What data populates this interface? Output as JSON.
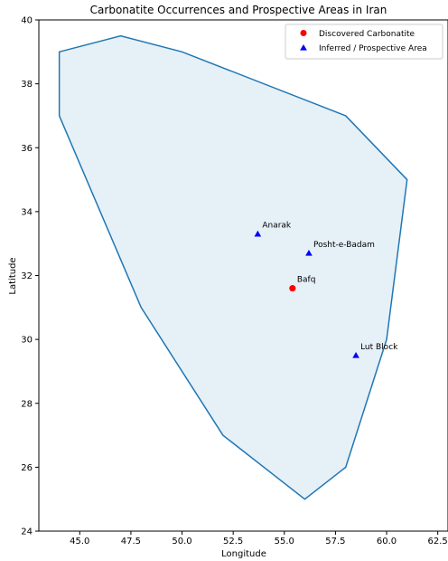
{
  "chart_data": {
    "type": "scatter",
    "title": "Carbonatite Occurrences and Prospective Areas in Iran",
    "xlabel": "Longitude",
    "ylabel": "Latitude",
    "xlim": [
      43.0,
      63.0
    ],
    "ylim": [
      24.0,
      40.0
    ],
    "x_ticks": [
      45.0,
      47.5,
      50.0,
      52.5,
      55.0,
      57.5,
      60.0,
      62.5
    ],
    "x_tick_labels": [
      "45.0",
      "47.5",
      "50.0",
      "52.5",
      "55.0",
      "57.5",
      "60.0",
      "62.5"
    ],
    "y_ticks": [
      24,
      26,
      28,
      30,
      32,
      34,
      36,
      38,
      40
    ],
    "y_tick_labels": [
      "24",
      "26",
      "28",
      "30",
      "32",
      "34",
      "36",
      "38",
      "40"
    ],
    "grid": false,
    "legend_position": "top-right",
    "boundary_color": "#1f77b4",
    "boundary_fill": "#1f77b4",
    "boundary_fill_opacity": 0.11,
    "boundary": [
      [
        44.0,
        39.0
      ],
      [
        47.0,
        39.5
      ],
      [
        50.0,
        39.0
      ],
      [
        58.0,
        37.0
      ],
      [
        61.0,
        35.0
      ],
      [
        60.0,
        30.0
      ],
      [
        58.0,
        26.0
      ],
      [
        56.0,
        25.0
      ],
      [
        52.0,
        27.0
      ],
      [
        48.0,
        31.0
      ],
      [
        44.0,
        37.0
      ]
    ],
    "series": [
      {
        "name": "Discovered Carbonatite",
        "marker": "circle",
        "color": "#ff0000",
        "points": [
          {
            "x": 55.4,
            "y": 31.6,
            "label": "Bafq"
          }
        ]
      },
      {
        "name": "Inferred / Prospective Area",
        "marker": "triangle",
        "color": "#0000ff",
        "points": [
          {
            "x": 53.7,
            "y": 33.3,
            "label": "Anarak"
          },
          {
            "x": 56.2,
            "y": 32.7,
            "label": "Posht-e-Badam"
          },
          {
            "x": 58.5,
            "y": 29.5,
            "label": "Lut Block"
          }
        ]
      }
    ]
  }
}
